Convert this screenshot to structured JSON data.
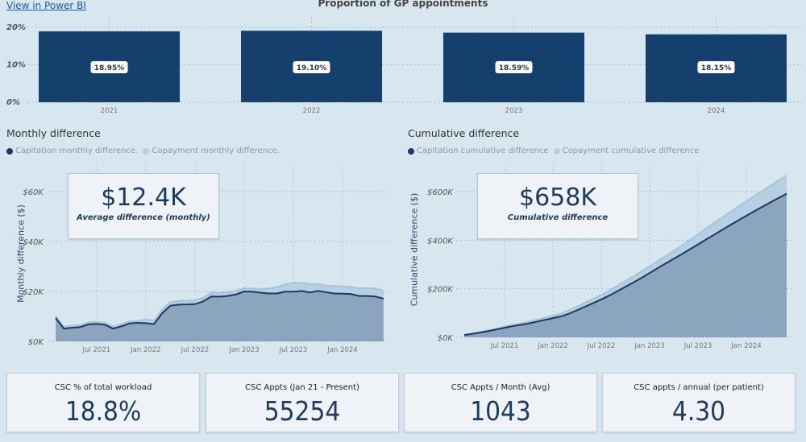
{
  "header": {
    "link_label": "View in Power BI",
    "bar_chart_title": "Proportion of GP appointments"
  },
  "colors": {
    "background": "#d8e7ef",
    "bar": "#15406e",
    "capitation_line": "#1a3a63",
    "capitation_fill": "#8aa5bd",
    "copayment_fill": "#b7cfe2"
  },
  "chart_data": [
    {
      "type": "bar",
      "title": "Proportion of GP appointments",
      "categories": [
        "2021",
        "2022",
        "2023",
        "2024"
      ],
      "values": [
        18.95,
        19.1,
        18.59,
        18.15
      ],
      "data_labels": [
        "18.95%",
        "19.10%",
        "18.59%",
        "18.15%"
      ],
      "yticks": [
        "0%",
        "10%",
        "20%"
      ],
      "ylim": [
        0,
        20
      ],
      "grid": true
    },
    {
      "type": "area",
      "title": "Monthly difference",
      "ylabel": "Monthly difference ($)",
      "legend_position": "top-left",
      "x": [
        "2021-02",
        "2021-03",
        "2021-04",
        "2021-05",
        "2021-06",
        "2021-07",
        "2021-08",
        "2021-09",
        "2021-10",
        "2021-11",
        "2021-12",
        "2022-01",
        "2022-02",
        "2022-03",
        "2022-04",
        "2022-05",
        "2022-06",
        "2022-07",
        "2022-08",
        "2022-09",
        "2022-10",
        "2022-11",
        "2022-12",
        "2023-01",
        "2023-02",
        "2023-03",
        "2023-04",
        "2023-05",
        "2023-06",
        "2023-07",
        "2023-08",
        "2023-09",
        "2023-10",
        "2023-11",
        "2023-12",
        "2024-01",
        "2024-02",
        "2024-03",
        "2024-04",
        "2024-05",
        "2024-06"
      ],
      "xticks": [
        "Jul 2021",
        "Jan 2022",
        "Jul 2022",
        "Jan 2023",
        "Jul 2023",
        "Jan 2024"
      ],
      "yticks": [
        "$0K",
        "$20K",
        "$40K",
        "$60K"
      ],
      "ylim": [
        0,
        60000
      ],
      "grid": true,
      "series": [
        {
          "name": "Capitation monthly difference.",
          "values": [
            9400,
            5100,
            5500,
            5700,
            6800,
            7000,
            6700,
            5100,
            6000,
            7200,
            7400,
            7300,
            6900,
            11300,
            14300,
            14700,
            14800,
            14900,
            16000,
            18000,
            17900,
            18200,
            18800,
            20000,
            19900,
            19500,
            19200,
            19200,
            19900,
            19900,
            20200,
            19600,
            20200,
            19700,
            19200,
            19100,
            19000,
            18200,
            18200,
            18000,
            17100
          ]
        },
        {
          "name": "Copayment monthly difference.",
          "values": [
            800,
            800,
            800,
            800,
            800,
            800,
            800,
            800,
            800,
            800,
            800,
            1500,
            1500,
            1500,
            1500,
            1500,
            1500,
            1500,
            1500,
            1500,
            1500,
            1500,
            1500,
            1200,
            1300,
            1500,
            2000,
            2500,
            3000,
            3600,
            3200,
            3300,
            2800,
            2700,
            2900,
            3000,
            2800,
            3100,
            3100,
            3200,
            3300
          ]
        }
      ],
      "kpi": {
        "value": "$12.4K",
        "caption": "Average difference (monthly)"
      }
    },
    {
      "type": "area",
      "title": "Cumulative difference",
      "ylabel": "Cumulative difference ($)",
      "legend_position": "top-left",
      "xticks": [
        "Jul 2021",
        "Jan 2022",
        "Jul 2022",
        "Jan 2023",
        "Jul 2023",
        "Jan 2024"
      ],
      "yticks": [
        "$0K",
        "$200K",
        "$400K",
        "$600K"
      ],
      "ylim": [
        0,
        600000
      ],
      "grid": true,
      "series": [
        {
          "name": "Capitation cumulative difference"
        },
        {
          "name": "Copayment cumulative difference"
        }
      ],
      "kpi": {
        "value": "$658K",
        "caption": "Cumulative difference"
      }
    }
  ],
  "cards": [
    {
      "label": "CSC % of total workload",
      "value": "18.8%"
    },
    {
      "label": "CSC Appts (Jan 21 - Present)",
      "value": "55254"
    },
    {
      "label": "CSC Appts / Month (Avg)",
      "value": "1043"
    },
    {
      "label": "CSC appts / annual (per patient)",
      "value": "4.30"
    }
  ]
}
